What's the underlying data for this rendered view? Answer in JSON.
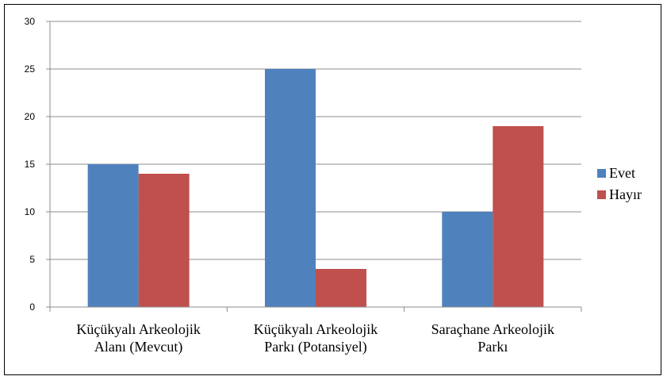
{
  "chart_data": {
    "type": "bar",
    "categories": [
      [
        "Küçükyalı Arkeolojik",
        "Alanı (Mevcut)"
      ],
      [
        "Küçükyalı Arkeolojik",
        "Parkı (Potansiyel)"
      ],
      [
        "Saraçhane Arkeolojik",
        "Parkı"
      ]
    ],
    "series": [
      {
        "name": "Evet",
        "color": "#4F81BD",
        "values": [
          15,
          25,
          10
        ]
      },
      {
        "name": "Hayır",
        "color": "#C0504D",
        "values": [
          14,
          4,
          19
        ]
      }
    ],
    "ylim": [
      0,
      30
    ],
    "yticks": [
      0,
      5,
      10,
      15,
      20,
      25,
      30
    ],
    "grid": true,
    "legend": "right",
    "title": "",
    "xlabel": "",
    "ylabel": ""
  }
}
